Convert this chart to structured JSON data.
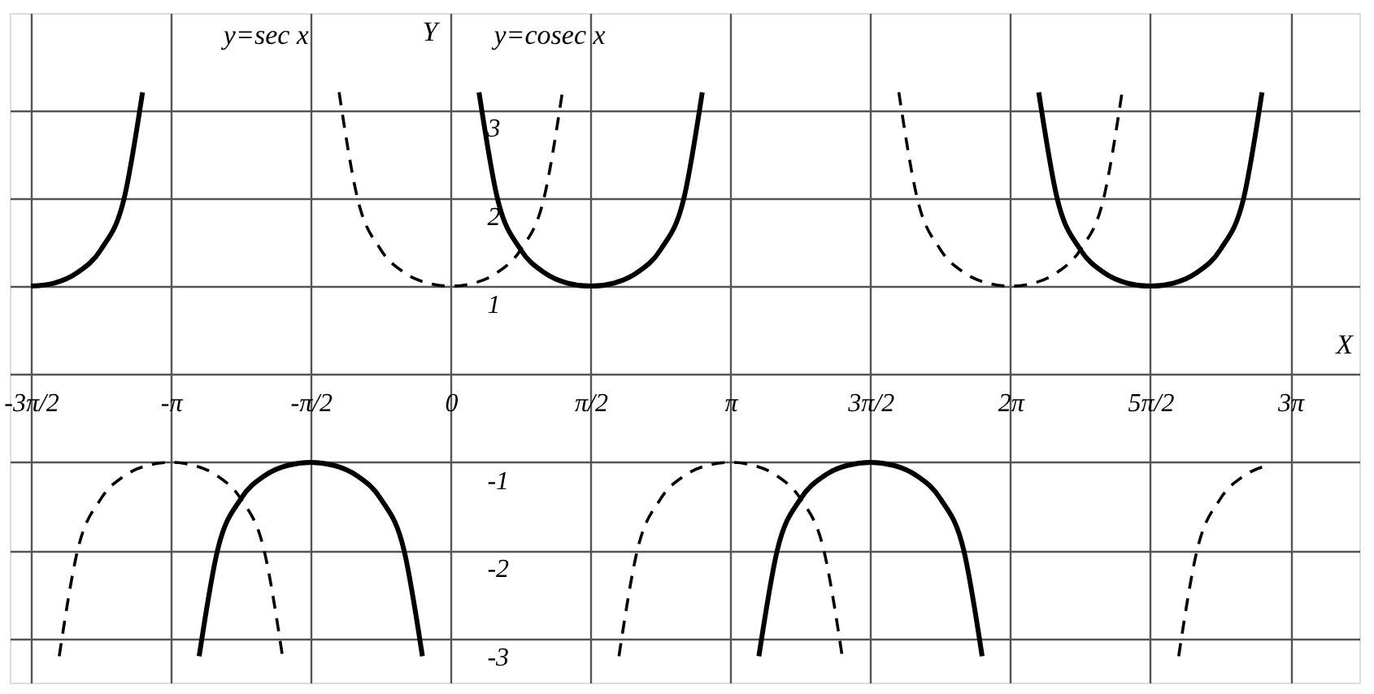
{
  "chart_data": {
    "type": "line",
    "xlabel": "X",
    "ylabel": "Y",
    "xlim": [
      -4.95,
      10.2
    ],
    "ylim": [
      -3.5,
      4.1
    ],
    "xticks": [
      {
        "value": -4.7124,
        "label": "-3π/2"
      },
      {
        "value": -3.1416,
        "label": "-π"
      },
      {
        "value": -1.5708,
        "label": "-π/2"
      },
      {
        "value": 0,
        "label": "0"
      },
      {
        "value": 1.5708,
        "label": "π/2"
      },
      {
        "value": 3.1416,
        "label": "π"
      },
      {
        "value": 4.7124,
        "label": "3π/2"
      },
      {
        "value": 6.2832,
        "label": "2π"
      },
      {
        "value": 7.854,
        "label": "5π/2"
      },
      {
        "value": 9.4248,
        "label": "3π"
      }
    ],
    "yticks": [
      -3,
      -2,
      -1,
      {
        "value": 0,
        "label": null
      },
      1,
      2,
      3
    ],
    "grid": true,
    "series": [
      {
        "color": "#000000",
        "line_style": "dashed",
        "x": [
          -4.3946,
          -4.1888,
          -3.927,
          -3.6652,
          -3.4034,
          -3.1416,
          -2.8798,
          -2.618,
          -2.3562,
          -2.0944,
          -1.8886,
          -1.5708,
          -1.253,
          -1.0472,
          -0.7854,
          -0.5236,
          -0.2618,
          0,
          0.2618,
          0.5236,
          0.7854,
          1.0472,
          1.253,
          1.5708,
          1.8886,
          2.0944,
          2.3562,
          2.618,
          2.8798,
          3.1416,
          3.4034,
          3.6652,
          3.927,
          4.1888,
          4.3946,
          4.7124,
          5.0302,
          5.236,
          5.4978,
          5.7596,
          6.0214,
          6.2832,
          6.545,
          6.8068,
          7.0686,
          7.3304,
          7.5362,
          7.854,
          8.1718,
          8.3776,
          8.6394,
          8.9012,
          9.163
        ],
        "values": [
          -3.2,
          -2,
          -1.414,
          -1.155,
          -1.035,
          -1,
          -1.035,
          -1.155,
          -1.414,
          -2,
          -3.2,
          null,
          3.2,
          2,
          1.414,
          1.155,
          1.035,
          1,
          1.035,
          1.155,
          1.414,
          2,
          3.2,
          null,
          -3.2,
          -2,
          -1.414,
          -1.155,
          -1.035,
          -1,
          -1.035,
          -1.155,
          -1.414,
          -2,
          -3.2,
          null,
          3.2,
          2,
          1.414,
          1.155,
          1.035,
          1,
          1.035,
          1.155,
          1.414,
          2,
          3.2,
          null,
          -3.2,
          -2,
          -1.414,
          -1.155,
          -1.035
        ]
      },
      {
        "color": "#000000",
        "line_style": "solid",
        "x": [
          -4.7124,
          -4.4506,
          -4.1888,
          -3.927,
          -3.6652,
          -3.4594,
          -3.1416,
          -2.8238,
          -2.618,
          -2.3562,
          -2.0944,
          -1.8326,
          -1.5708,
          -1.309,
          -1.0472,
          -0.7854,
          -0.5236,
          -0.3178,
          0,
          0.3178,
          0.5236,
          0.7854,
          1.0472,
          1.309,
          1.5708,
          1.8326,
          2.0944,
          2.3562,
          2.618,
          2.8238,
          3.1416,
          3.4594,
          3.6652,
          3.927,
          4.1888,
          4.4506,
          4.7124,
          4.9742,
          5.236,
          5.4978,
          5.7596,
          5.9654,
          6.2832,
          6.601,
          6.8068,
          7.0686,
          7.3304,
          7.5922,
          7.854,
          8.1158,
          8.3776,
          8.6394,
          8.9012,
          9.107
        ],
        "values": [
          1,
          1.035,
          1.155,
          1.414,
          2,
          3.2,
          null,
          -3.2,
          -2,
          -1.414,
          -1.155,
          -1.035,
          -1,
          -1.035,
          -1.155,
          -1.414,
          -2,
          -3.2,
          null,
          3.2,
          2,
          1.414,
          1.155,
          1.035,
          1,
          1.035,
          1.155,
          1.414,
          2,
          3.2,
          null,
          -3.2,
          -2,
          -1.414,
          -1.155,
          -1.035,
          -1,
          -1.035,
          -1.155,
          -1.414,
          -2,
          -3.2,
          null,
          3.2,
          2,
          1.414,
          1.155,
          1.035,
          1,
          1.035,
          1.155,
          1.414,
          2,
          3.2
        ]
      }
    ],
    "annotations": [
      "y=sec x",
      "y=cosec x"
    ]
  }
}
